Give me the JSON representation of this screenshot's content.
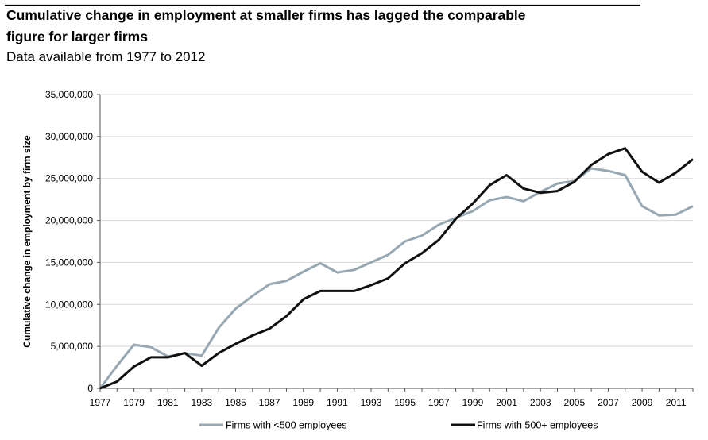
{
  "chart_data": {
    "type": "line",
    "title": "Cumulative change in employment at smaller firms has lagged the comparable figure for larger firms",
    "title_lines": [
      "Cumulative change in employment at smaller firms has lagged the comparable",
      "figure for larger firms"
    ],
    "subtitle": "Data available from 1977 to 2012",
    "xlabel": "",
    "ylabel": "Cumulative change in employment by firm size",
    "ylim": [
      0,
      35000000
    ],
    "xlim": [
      1977,
      2012
    ],
    "yticks": [
      0,
      5000000,
      10000000,
      15000000,
      20000000,
      25000000,
      30000000,
      35000000
    ],
    "ytick_labels": [
      "0",
      "5,000,000",
      "10,000,000",
      "15,000,000",
      "20,000,000",
      "25,000,000",
      "30,000,000",
      "35,000,000"
    ],
    "xtick_labels": [
      "1977",
      "1979",
      "1981",
      "1983",
      "1985",
      "1987",
      "1989",
      "1991",
      "1993",
      "1995",
      "1997",
      "1999",
      "2001",
      "2003",
      "2005",
      "2007",
      "2009",
      "2011"
    ],
    "grid": true,
    "legend_position": "bottom",
    "x": [
      1977,
      1978,
      1979,
      1980,
      1981,
      1982,
      1983,
      1984,
      1985,
      1986,
      1987,
      1988,
      1989,
      1990,
      1991,
      1992,
      1993,
      1994,
      1995,
      1996,
      1997,
      1998,
      1999,
      2000,
      2001,
      2002,
      2003,
      2004,
      2005,
      2006,
      2007,
      2008,
      2009,
      2010,
      2011,
      2012
    ],
    "series": [
      {
        "name": "Firms with <500 employees",
        "color": "#97a8b3",
        "values": [
          0,
          2700000,
          5200000,
          4900000,
          3800000,
          4200000,
          3900000,
          7200000,
          9500000,
          11000000,
          12400000,
          12800000,
          13900000,
          14900000,
          13800000,
          14100000,
          15000000,
          15900000,
          17500000,
          18200000,
          19500000,
          20300000,
          21100000,
          22400000,
          22800000,
          22300000,
          23400000,
          24400000,
          24700000,
          26200000,
          25900000,
          25400000,
          21700000,
          20600000,
          20700000,
          21700000
        ]
      },
      {
        "name": "Firms with 500+ employees",
        "color": "#111111",
        "values": [
          0,
          800000,
          2600000,
          3700000,
          3700000,
          4200000,
          2700000,
          4200000,
          5300000,
          6300000,
          7100000,
          8600000,
          10600000,
          11600000,
          11600000,
          11600000,
          12300000,
          13100000,
          14900000,
          16100000,
          17700000,
          20200000,
          22000000,
          24200000,
          25400000,
          23800000,
          23300000,
          23500000,
          24600000,
          26600000,
          27900000,
          28600000,
          25800000,
          24500000,
          25700000,
          27300000
        ]
      }
    ]
  }
}
